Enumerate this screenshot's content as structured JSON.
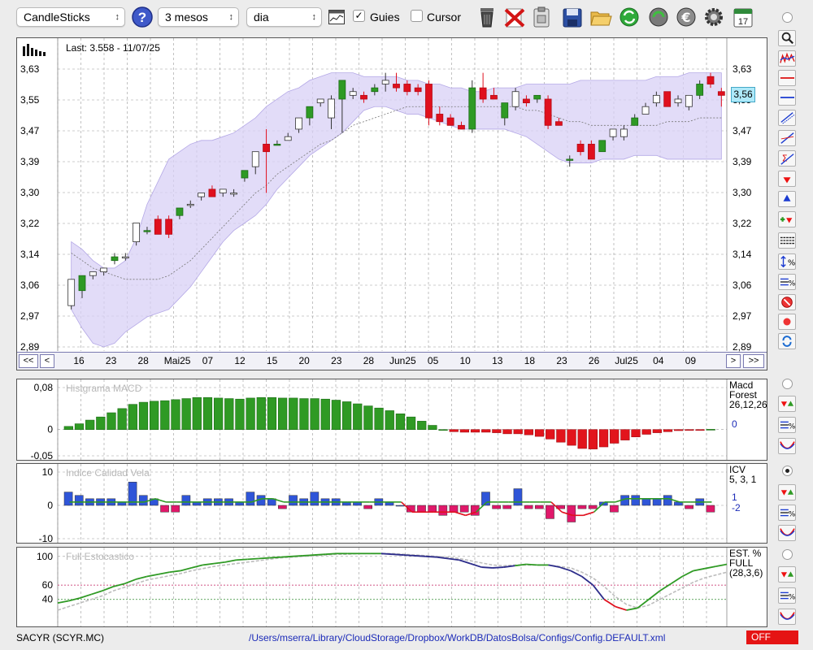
{
  "toolbar": {
    "symbol_select": "CandleSticks",
    "period_select": "3 mesos",
    "interval_select": "dia",
    "guides_label": "Guies",
    "guides_checked": true,
    "cursor_label": "Cursor",
    "cursor_checked": false,
    "calendar_day": "17"
  },
  "main_chart": {
    "last_label": "Last: 3.558 - 11/07/25",
    "price_tag": "3,56",
    "y_ticks": [
      "3,63",
      "3,55",
      "3,47",
      "3,39",
      "3,30",
      "3,22",
      "3,14",
      "3,06",
      "2,97",
      "2,89"
    ],
    "x_labels": [
      "16",
      "23",
      "28",
      "Mai25",
      "07",
      "12",
      "15",
      "20",
      "23",
      "28",
      "Jun25",
      "05",
      "10",
      "13",
      "18",
      "23",
      "26",
      "Jul25",
      "04",
      "09"
    ],
    "nav_left": [
      "<<",
      "<"
    ],
    "nav_right": [
      ">",
      ">>"
    ]
  },
  "macd": {
    "title": "Histgrama MACD",
    "legend": [
      "Macd",
      "Forest",
      "26,12,26"
    ],
    "value": "0",
    "y_ticks": [
      "0,08",
      "0",
      "-0,05"
    ]
  },
  "icv": {
    "title": "Indice Calidad Vela",
    "legend": [
      "ICV",
      "5, 3, 1"
    ],
    "values": [
      "1",
      "-2"
    ],
    "y_ticks": [
      "10",
      "0",
      "-10"
    ]
  },
  "stoch": {
    "title": "Full Estocastico",
    "legend": [
      "EST. %",
      "FULL",
      "(28,3,6)"
    ],
    "y_ticks": [
      "100",
      "60",
      "40"
    ]
  },
  "footer": {
    "name": "SACYR (SCYR.MC)",
    "path": "/Users/mserra/Library/CloudStorage/Dropbox/WorkDB/DatosBolsa/Configs/Config.DEFAULT.xml",
    "status": "OFF"
  },
  "colors": {
    "up": "#2e9a25",
    "down": "#e0101e",
    "band": "#d8d0f5",
    "macd_up": "#2f9a24",
    "macd_down": "#e2141c",
    "icv_pos": "#2f55d8",
    "icv_neg": "#e0186a"
  },
  "chart_data": [
    {
      "type": "candlestick",
      "ylim": [
        2.89,
        3.63
      ],
      "ohlc": [
        [
          3.0,
          3.07,
          2.99,
          3.07
        ],
        [
          3.04,
          3.08,
          3.02,
          3.08
        ],
        [
          3.08,
          3.09,
          3.07,
          3.09
        ],
        [
          3.09,
          3.1,
          3.08,
          3.1
        ],
        [
          3.12,
          3.14,
          3.11,
          3.13
        ],
        [
          3.13,
          3.14,
          3.12,
          3.13
        ],
        [
          3.17,
          3.22,
          3.16,
          3.22
        ],
        [
          3.2,
          3.21,
          3.19,
          3.2
        ],
        [
          3.23,
          3.24,
          3.19,
          3.19
        ],
        [
          3.23,
          3.24,
          3.18,
          3.19
        ],
        [
          3.24,
          3.26,
          3.23,
          3.26
        ],
        [
          3.27,
          3.28,
          3.26,
          3.27
        ],
        [
          3.29,
          3.3,
          3.28,
          3.3
        ],
        [
          3.31,
          3.32,
          3.29,
          3.29
        ],
        [
          3.3,
          3.31,
          3.29,
          3.31
        ],
        [
          3.3,
          3.31,
          3.29,
          3.3
        ],
        [
          3.34,
          3.36,
          3.33,
          3.36
        ],
        [
          3.37,
          3.41,
          3.35,
          3.41
        ],
        [
          3.43,
          3.47,
          3.3,
          3.41
        ],
        [
          3.43,
          3.44,
          3.43,
          3.43
        ],
        [
          3.44,
          3.46,
          3.44,
          3.45
        ],
        [
          3.47,
          3.5,
          3.46,
          3.5
        ],
        [
          3.5,
          3.53,
          3.48,
          3.53
        ],
        [
          3.54,
          3.55,
          3.53,
          3.55
        ],
        [
          3.5,
          3.56,
          3.47,
          3.55
        ],
        [
          3.55,
          3.6,
          3.46,
          3.6
        ],
        [
          3.56,
          3.58,
          3.55,
          3.57
        ],
        [
          3.56,
          3.57,
          3.54,
          3.55
        ],
        [
          3.57,
          3.59,
          3.56,
          3.58
        ],
        [
          3.59,
          3.62,
          3.57,
          3.6
        ],
        [
          3.59,
          3.62,
          3.57,
          3.58
        ],
        [
          3.59,
          3.6,
          3.56,
          3.57
        ],
        [
          3.58,
          3.59,
          3.56,
          3.57
        ],
        [
          3.59,
          3.6,
          3.48,
          3.5
        ],
        [
          3.51,
          3.53,
          3.48,
          3.49
        ],
        [
          3.5,
          3.51,
          3.48,
          3.48
        ],
        [
          3.48,
          3.49,
          3.47,
          3.47
        ],
        [
          3.47,
          3.6,
          3.46,
          3.58
        ],
        [
          3.58,
          3.62,
          3.54,
          3.55
        ],
        [
          3.56,
          3.58,
          3.55,
          3.55
        ],
        [
          3.5,
          3.54,
          3.48,
          3.54
        ],
        [
          3.53,
          3.58,
          3.52,
          3.57
        ],
        [
          3.55,
          3.56,
          3.53,
          3.54
        ],
        [
          3.55,
          3.56,
          3.54,
          3.56
        ],
        [
          3.55,
          3.56,
          3.47,
          3.48
        ],
        [
          3.49,
          3.5,
          3.48,
          3.48
        ],
        [
          3.39,
          3.4,
          3.37,
          3.39
        ],
        [
          3.43,
          3.44,
          3.4,
          3.41
        ],
        [
          3.43,
          3.44,
          3.39,
          3.39
        ],
        [
          3.41,
          3.44,
          3.41,
          3.44
        ],
        [
          3.45,
          3.47,
          3.44,
          3.47
        ],
        [
          3.45,
          3.48,
          3.44,
          3.47
        ],
        [
          3.48,
          3.51,
          3.48,
          3.5
        ],
        [
          3.51,
          3.54,
          3.51,
          3.53
        ],
        [
          3.54,
          3.57,
          3.53,
          3.56
        ],
        [
          3.57,
          3.57,
          3.53,
          3.53
        ],
        [
          3.54,
          3.56,
          3.53,
          3.55
        ],
        [
          3.53,
          3.56,
          3.52,
          3.56
        ],
        [
          3.56,
          3.6,
          3.55,
          3.59
        ],
        [
          3.61,
          3.62,
          3.58,
          3.59
        ],
        [
          3.57,
          3.58,
          3.53,
          3.56
        ]
      ],
      "upper_band": [
        3.17,
        3.15,
        3.12,
        3.1,
        3.1,
        3.12,
        3.18,
        3.27,
        3.33,
        3.39,
        3.41,
        3.43,
        3.44,
        3.44,
        3.45,
        3.46,
        3.48,
        3.5,
        3.53,
        3.55,
        3.57,
        3.58,
        3.6,
        3.61,
        3.62,
        3.62,
        3.62,
        3.61,
        3.61,
        3.61,
        3.61,
        3.6,
        3.6,
        3.59,
        3.59,
        3.58,
        3.58,
        3.57,
        3.57,
        3.58,
        3.58,
        3.58,
        3.59,
        3.59,
        3.59,
        3.59,
        3.59,
        3.6,
        3.6,
        3.6,
        3.6,
        3.6,
        3.6,
        3.6,
        3.61,
        3.61,
        3.61,
        3.62,
        3.62,
        3.62,
        3.62
      ],
      "lower_band": [
        2.99,
        2.94,
        2.9,
        2.89,
        2.9,
        2.93,
        2.95,
        2.97,
        2.98,
        2.99,
        3.02,
        3.05,
        3.09,
        3.13,
        3.17,
        3.2,
        3.22,
        3.24,
        3.27,
        3.31,
        3.34,
        3.37,
        3.4,
        3.42,
        3.44,
        3.46,
        3.49,
        3.52,
        3.53,
        3.53,
        3.52,
        3.51,
        3.51,
        3.5,
        3.49,
        3.48,
        3.47,
        3.47,
        3.47,
        3.47,
        3.47,
        3.46,
        3.45,
        3.43,
        3.41,
        3.39,
        3.38,
        3.38,
        3.38,
        3.39,
        3.39,
        3.39,
        3.4,
        3.4,
        3.4,
        3.39,
        3.39,
        3.39,
        3.39,
        3.39,
        3.39
      ],
      "middle_line": [
        3.14,
        3.12,
        3.1,
        3.09,
        3.08,
        3.07,
        3.07,
        3.07,
        3.07,
        3.08,
        3.1,
        3.12,
        3.15,
        3.18,
        3.21,
        3.24,
        3.27,
        3.3,
        3.32,
        3.35,
        3.37,
        3.39,
        3.41,
        3.43,
        3.44,
        3.46,
        3.48,
        3.49,
        3.5,
        3.51,
        3.52,
        3.53,
        3.53,
        3.53,
        3.53,
        3.53,
        3.53,
        3.53,
        3.53,
        3.53,
        3.53,
        3.53,
        3.52,
        3.52,
        3.51,
        3.5,
        3.49,
        3.49,
        3.48,
        3.48,
        3.48,
        3.48,
        3.48,
        3.48,
        3.48,
        3.49,
        3.49,
        3.49,
        3.5,
        3.5,
        3.5
      ]
    },
    {
      "type": "bar",
      "ylim": [
        -0.05,
        0.08
      ],
      "values": [
        0.006,
        0.011,
        0.018,
        0.024,
        0.032,
        0.04,
        0.048,
        0.052,
        0.054,
        0.055,
        0.057,
        0.059,
        0.061,
        0.061,
        0.06,
        0.059,
        0.058,
        0.06,
        0.061,
        0.061,
        0.06,
        0.06,
        0.059,
        0.059,
        0.058,
        0.056,
        0.053,
        0.049,
        0.045,
        0.041,
        0.036,
        0.03,
        0.024,
        0.016,
        0.008,
        0.0,
        -0.004,
        -0.005,
        -0.005,
        -0.005,
        -0.006,
        -0.008,
        -0.008,
        -0.01,
        -0.013,
        -0.018,
        -0.024,
        -0.03,
        -0.036,
        -0.037,
        -0.033,
        -0.026,
        -0.02,
        -0.014,
        -0.009,
        -0.006,
        -0.004,
        -0.002,
        -0.001,
        -0.001,
        0.0005
      ]
    },
    {
      "type": "bar",
      "ylim": [
        -10,
        10
      ],
      "values": [
        4,
        3,
        2,
        2,
        2,
        1,
        7,
        3,
        2,
        -2,
        -2,
        3,
        1,
        2,
        2,
        2,
        1,
        4,
        3,
        2,
        -1,
        3,
        2,
        4,
        2,
        2,
        1,
        1,
        -1,
        2,
        1,
        0,
        -2,
        -2,
        -2,
        -3,
        -2,
        -2,
        -3,
        4,
        -1,
        -1,
        5,
        -1,
        -1,
        -4,
        -1,
        -5,
        -1,
        -1,
        1,
        -2,
        3,
        3,
        2,
        2,
        3,
        1,
        -1,
        2,
        -2
      ],
      "line": [
        1,
        1,
        1,
        1,
        1,
        1,
        1,
        1,
        2,
        1,
        1,
        1,
        1,
        1,
        1,
        1,
        1,
        1,
        2,
        2,
        1,
        1,
        1,
        1,
        1,
        1,
        1,
        1,
        1,
        1,
        1,
        1,
        -2,
        -2,
        -2,
        -2,
        -2,
        -3,
        -2,
        1,
        1,
        1,
        1,
        1,
        1,
        1,
        -2,
        -3,
        -3,
        -2,
        1,
        1,
        2,
        2,
        2,
        2,
        2,
        1,
        1,
        1,
        1
      ]
    },
    {
      "type": "line",
      "ylim": [
        0,
        110
      ],
      "k": [
        35,
        38,
        42,
        47,
        52,
        58,
        62,
        68,
        72,
        75,
        78,
        80,
        84,
        88,
        90,
        92,
        95,
        96,
        97,
        98,
        99,
        100,
        101,
        102,
        103,
        104,
        104,
        104,
        104,
        104,
        103,
        102,
        101,
        100,
        99,
        97,
        95,
        90,
        85,
        84,
        85,
        87,
        89,
        88,
        88,
        85,
        80,
        72,
        60,
        40,
        30,
        25,
        28,
        40,
        52,
        62,
        72,
        80,
        83,
        86,
        89
      ],
      "d": [
        25,
        30,
        35,
        40,
        45,
        52,
        57,
        62,
        67,
        70,
        73,
        76,
        80,
        83,
        86,
        88,
        90,
        92,
        94,
        96,
        98,
        99,
        100,
        101,
        102,
        103,
        103,
        104,
        104,
        104,
        104,
        103,
        102,
        101,
        100,
        99,
        97,
        94,
        91,
        88,
        87,
        88,
        88,
        88,
        88,
        86,
        84,
        78,
        70,
        58,
        44,
        33,
        28,
        32,
        40,
        48,
        56,
        64,
        70,
        74,
        78
      ],
      "levels": [
        60,
        40
      ]
    }
  ]
}
